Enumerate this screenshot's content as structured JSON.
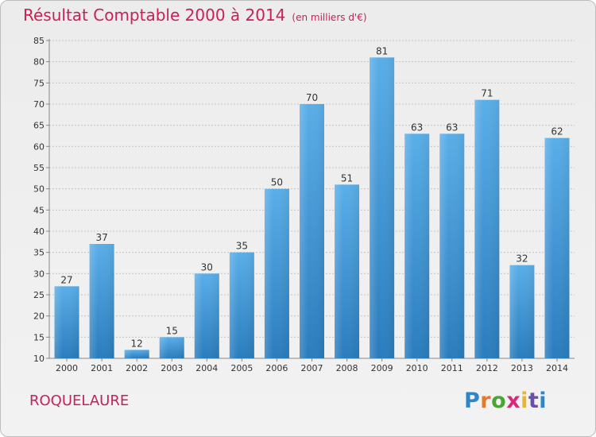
{
  "header": {
    "title": "Résultat Comptable 2000 à 2014",
    "subtitle": "(en milliers d'€)"
  },
  "footer": {
    "commune": "ROQUELAURE",
    "logo_text": "Proxiti",
    "logo_letters": [
      "P",
      "r",
      "o",
      "x",
      "i",
      "t",
      "i"
    ],
    "logo_colors": [
      "#2e86c8",
      "#e8792c",
      "#4aa534",
      "#d82a7b",
      "#e8b62c",
      "#6a4fa8",
      "#2e86c8"
    ]
  },
  "chart_data": {
    "type": "bar",
    "title": "Résultat Comptable 2000 à 2014",
    "subtitle": "(en milliers d'€)",
    "xlabel": "",
    "ylabel": "",
    "categories": [
      "2000",
      "2001",
      "2002",
      "2003",
      "2004",
      "2005",
      "2006",
      "2007",
      "2008",
      "2009",
      "2010",
      "2011",
      "2012",
      "2013",
      "2014"
    ],
    "values": [
      27,
      37,
      12,
      15,
      30,
      35,
      50,
      70,
      51,
      81,
      63,
      63,
      71,
      32,
      62
    ],
    "ylim": [
      10,
      85
    ],
    "yticks": [
      10,
      15,
      20,
      25,
      30,
      35,
      40,
      45,
      50,
      55,
      60,
      65,
      70,
      75,
      80,
      85
    ],
    "grid": true,
    "bar_color_top": "#5aaee8",
    "bar_color_bottom": "#2a7cbd"
  }
}
